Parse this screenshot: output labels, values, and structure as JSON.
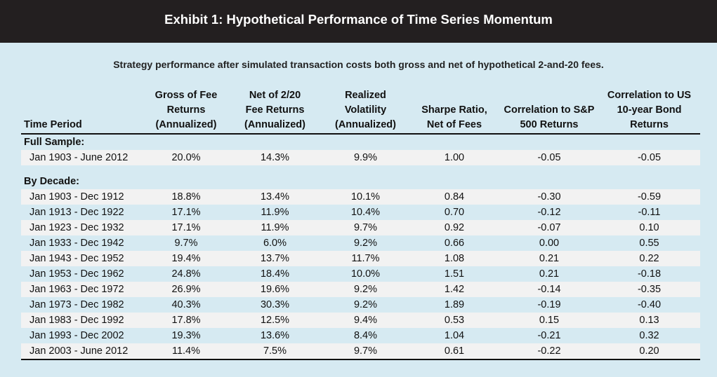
{
  "title": "Exhibit 1: Hypothetical Performance of Time Series Momentum",
  "subtitle": "Strategy performance after simulated transaction costs both gross and net of hypothetical 2-and-20 fees.",
  "headers": [
    [
      "",
      "",
      "Time Period"
    ],
    [
      "Gross of Fee",
      "Returns",
      "(Annualized)"
    ],
    [
      "Net of 2/20",
      "Fee Returns",
      "(Annualized)"
    ],
    [
      "Realized",
      "Volatility",
      "(Annualized)"
    ],
    [
      "",
      "Sharpe Ratio,",
      "Net of Fees"
    ],
    [
      "",
      "Correlation to S&P",
      "500 Returns"
    ],
    [
      "Correlation to US",
      "10-year Bond",
      "Returns"
    ]
  ],
  "full_sample": {
    "label": "Full Sample:",
    "rows": [
      [
        "Jan 1903 -  June 2012",
        "20.0%",
        "14.3%",
        "9.9%",
        "1.00",
        "-0.05",
        "-0.05"
      ]
    ]
  },
  "by_decade": {
    "label": "By Decade:",
    "rows": [
      [
        "Jan 1903 - Dec 1912",
        "18.8%",
        "13.4%",
        "10.1%",
        "0.84",
        "-0.30",
        "-0.59"
      ],
      [
        "Jan 1913 - Dec 1922",
        "17.1%",
        "11.9%",
        "10.4%",
        "0.70",
        "-0.12",
        "-0.11"
      ],
      [
        "Jan 1923 - Dec 1932",
        "17.1%",
        "11.9%",
        "9.7%",
        "0.92",
        "-0.07",
        "0.10"
      ],
      [
        "Jan 1933 - Dec 1942",
        "9.7%",
        "6.0%",
        "9.2%",
        "0.66",
        "0.00",
        "0.55"
      ],
      [
        "Jan 1943 - Dec 1952",
        "19.4%",
        "13.7%",
        "11.7%",
        "1.08",
        "0.21",
        "0.22"
      ],
      [
        "Jan 1953 - Dec 1962",
        "24.8%",
        "18.4%",
        "10.0%",
        "1.51",
        "0.21",
        "-0.18"
      ],
      [
        "Jan 1963 - Dec 1972",
        "26.9%",
        "19.6%",
        "9.2%",
        "1.42",
        "-0.14",
        "-0.35"
      ],
      [
        "Jan 1973 - Dec 1982",
        "40.3%",
        "30.3%",
        "9.2%",
        "1.89",
        "-0.19",
        "-0.40"
      ],
      [
        "Jan 1983 - Dec 1992",
        "17.8%",
        "12.5%",
        "9.4%",
        "0.53",
        "0.15",
        "0.13"
      ],
      [
        "Jan 1993 - Dec 2002",
        "19.3%",
        "13.6%",
        "8.4%",
        "1.04",
        "-0.21",
        "0.32"
      ],
      [
        "Jan 2003 - June 2012",
        "11.4%",
        "7.5%",
        "9.7%",
        "0.61",
        "-0.22",
        "0.20"
      ]
    ]
  },
  "colors": {
    "page_background": "#d6eaf2",
    "title_bar": "#231f20",
    "stripe": "#f2f2f2"
  }
}
